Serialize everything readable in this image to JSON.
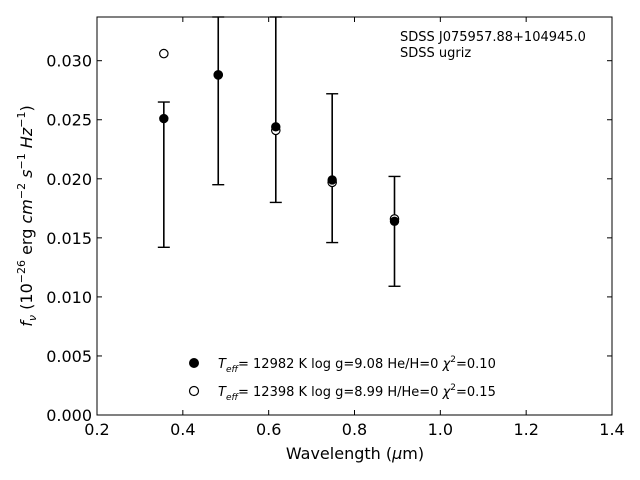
{
  "chart_data": {
    "type": "scatter",
    "xlabel": {
      "pre": "Wavelength (",
      "sym": "μ",
      "post": "m)"
    },
    "ylabel": {
      "f": "f",
      "fsub": "ν",
      "p1": " (10",
      "exp1": "−26",
      "p2": " erg ",
      "cm": "cm",
      "exp2": "−2",
      "s": " s",
      "exp3": "−1",
      "hz": " Hz",
      "exp4": "−1",
      "close": ")"
    },
    "xlim": [
      0.2,
      1.4
    ],
    "ylim": [
      0.0,
      0.0337
    ],
    "xticks": [
      "0.2",
      "0.4",
      "0.6",
      "0.8",
      "1.0",
      "1.2",
      "1.4"
    ],
    "yticks": [
      "0.000",
      "0.005",
      "0.010",
      "0.015",
      "0.020",
      "0.025",
      "0.030"
    ],
    "annotations": [
      "SDSS J075957.88+104945.0",
      "SDSS ugriz"
    ],
    "observed": {
      "x": [
        0.3557,
        0.4825,
        0.6166,
        0.748,
        0.8932
      ],
      "y": [
        0.0251,
        0.0288,
        0.0244,
        0.0199,
        0.0164
      ],
      "yerr_low": [
        0.0142,
        0.0195,
        0.018,
        0.0146,
        0.0109
      ],
      "yerr_high": [
        0.0265,
        0.0337,
        0.0337,
        0.0272,
        0.0202
      ]
    },
    "series": [
      {
        "name": "T_eff= 12982 K  log g=9.08  He/H=0  χ²=0.10",
        "marker": "filled",
        "x": [
          0.3557,
          0.4825,
          0.6166,
          0.748,
          0.8932
        ],
        "y": [
          0.0251,
          0.0288,
          0.0244,
          0.0199,
          0.0164
        ],
        "legend": {
          "teff_T": "T",
          "teff_sub": "eff",
          "rest": "= 12982 K  log g=9.08  He/H=0  ",
          "chi": "χ",
          "chi_sup": "2",
          "chi_val": "=0.10"
        }
      },
      {
        "name": "T_eff= 12398 K  log g=8.99  H/He=0  χ²=0.15",
        "marker": "open",
        "x": [
          0.3557,
          0.4825,
          0.6166,
          0.748,
          0.8932
        ],
        "y": [
          0.0306,
          0.0288,
          0.0241,
          0.0197,
          0.0166
        ],
        "legend": {
          "teff_T": "T",
          "teff_sub": "eff",
          "rest": "= 12398 K  log g=8.99  H/He=0  ",
          "chi": "χ",
          "chi_sup": "2",
          "chi_val": "=0.15"
        }
      }
    ],
    "grid": false,
    "legend_position": "lower-center",
    "colors": {
      "marker": "#000000",
      "background": "#ffffff"
    }
  }
}
